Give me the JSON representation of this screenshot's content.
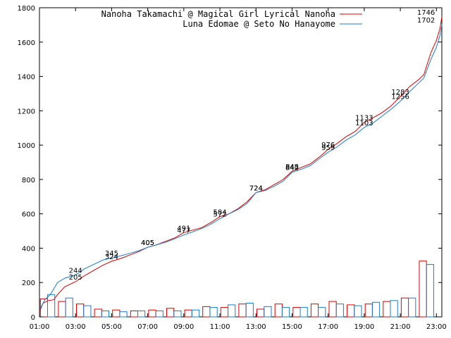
{
  "chart_data": {
    "type": "line",
    "title": "",
    "xlabel": "",
    "ylabel": "",
    "xlim": [
      1,
      23.3
    ],
    "ylim": [
      0,
      1800
    ],
    "grid": false,
    "legend_position": "top-right",
    "x_ticks": [
      "01:00",
      "03:00",
      "05:00",
      "07:00",
      "09:00",
      "11:00",
      "13:00",
      "15:00",
      "17:00",
      "19:00",
      "21:00",
      "23:00"
    ],
    "x_tick_values": [
      1,
      3,
      5,
      7,
      9,
      11,
      13,
      15,
      17,
      19,
      21,
      23
    ],
    "y_ticks": [
      0,
      200,
      400,
      600,
      800,
      1000,
      1200,
      1400,
      1600,
      1800
    ],
    "series": [
      {
        "name": "Nanoha Takamachi @ Magical Girl Lyrical Nanoha",
        "color": "#dd0000",
        "cumulative": [
          [
            1,
            30
          ],
          [
            1.2,
            80
          ],
          [
            1.5,
            95
          ],
          [
            1.8,
            100
          ],
          [
            2,
            130
          ],
          [
            2.4,
            175
          ],
          [
            3,
            205
          ],
          [
            3.5,
            240
          ],
          [
            4,
            270
          ],
          [
            4.5,
            300
          ],
          [
            5,
            324
          ],
          [
            5.5,
            340
          ],
          [
            6,
            360
          ],
          [
            6.5,
            380
          ],
          [
            7,
            405
          ],
          [
            7.5,
            420
          ],
          [
            8,
            440
          ],
          [
            8.5,
            460
          ],
          [
            9,
            491
          ],
          [
            9.5,
            505
          ],
          [
            10,
            520
          ],
          [
            10.5,
            550
          ],
          [
            11,
            584
          ],
          [
            11.5,
            600
          ],
          [
            12,
            630
          ],
          [
            12.5,
            670
          ],
          [
            13,
            724
          ],
          [
            13.5,
            740
          ],
          [
            14,
            770
          ],
          [
            14.5,
            800
          ],
          [
            15,
            848
          ],
          [
            15.5,
            870
          ],
          [
            16,
            890
          ],
          [
            16.5,
            930
          ],
          [
            17,
            976
          ],
          [
            17.5,
            1010
          ],
          [
            18,
            1050
          ],
          [
            18.5,
            1080
          ],
          [
            19,
            1133
          ],
          [
            19.5,
            1160
          ],
          [
            20,
            1190
          ],
          [
            20.5,
            1230
          ],
          [
            21,
            1283
          ],
          [
            21.5,
            1340
          ],
          [
            22,
            1380
          ],
          [
            22.3,
            1410
          ],
          [
            22.7,
            1540
          ],
          [
            23,
            1610
          ],
          [
            23.2,
            1680
          ],
          [
            23.3,
            1746
          ]
        ],
        "hourly": [
          105,
          90,
          75,
          45,
          40,
          35,
          40,
          50,
          40,
          60,
          55,
          75,
          45,
          75,
          55,
          75,
          90,
          70,
          75,
          90,
          110,
          325
        ]
      },
      {
        "name": "Luna Edomae @ Seto No Hanayome",
        "color": "#1a7ccc",
        "cumulative": [
          [
            1,
            40
          ],
          [
            1.3,
            100
          ],
          [
            1.6,
            130
          ],
          [
            2,
            200
          ],
          [
            2.4,
            225
          ],
          [
            3,
            244
          ],
          [
            3.5,
            280
          ],
          [
            4,
            305
          ],
          [
            4.5,
            330
          ],
          [
            5,
            345
          ],
          [
            5.5,
            355
          ],
          [
            6,
            370
          ],
          [
            6.5,
            385
          ],
          [
            7,
            405
          ],
          [
            7.5,
            420
          ],
          [
            8,
            435
          ],
          [
            8.5,
            455
          ],
          [
            9,
            477
          ],
          [
            9.5,
            495
          ],
          [
            10,
            515
          ],
          [
            10.5,
            540
          ],
          [
            11,
            572
          ],
          [
            11.5,
            600
          ],
          [
            12,
            625
          ],
          [
            12.5,
            660
          ],
          [
            13,
            724
          ],
          [
            13.5,
            735
          ],
          [
            14,
            760
          ],
          [
            14.5,
            790
          ],
          [
            15,
            842
          ],
          [
            15.5,
            860
          ],
          [
            16,
            880
          ],
          [
            16.5,
            920
          ],
          [
            17,
            959
          ],
          [
            17.5,
            990
          ],
          [
            18,
            1030
          ],
          [
            18.5,
            1060
          ],
          [
            19,
            1103
          ],
          [
            19.5,
            1130
          ],
          [
            20,
            1170
          ],
          [
            20.5,
            1210
          ],
          [
            21,
            1256
          ],
          [
            21.5,
            1310
          ],
          [
            22,
            1360
          ],
          [
            22.3,
            1390
          ],
          [
            22.7,
            1500
          ],
          [
            23,
            1570
          ],
          [
            23.2,
            1640
          ],
          [
            23.3,
            1702
          ]
        ],
        "hourly": [
          130,
          110,
          65,
          35,
          30,
          35,
          35,
          35,
          40,
          55,
          70,
          80,
          60,
          55,
          55,
          55,
          75,
          65,
          85,
          95,
          110,
          305
        ]
      }
    ],
    "annotations": [
      {
        "series": 1,
        "x": 3,
        "y": 244,
        "text": "244"
      },
      {
        "series": 0,
        "x": 3,
        "y": 205,
        "text": "205"
      },
      {
        "series": 1,
        "x": 5,
        "y": 345,
        "text": "345"
      },
      {
        "series": 0,
        "x": 5,
        "y": 324,
        "text": "324"
      },
      {
        "series": 0,
        "x": 7,
        "y": 405,
        "text": "405"
      },
      {
        "series": 1,
        "x": 7,
        "y": 405,
        "text": "405"
      },
      {
        "series": 0,
        "x": 9,
        "y": 491,
        "text": "491"
      },
      {
        "series": 1,
        "x": 9,
        "y": 477,
        "text": "477"
      },
      {
        "series": 0,
        "x": 11,
        "y": 584,
        "text": "584"
      },
      {
        "series": 1,
        "x": 11,
        "y": 572,
        "text": "572"
      },
      {
        "series": 0,
        "x": 13,
        "y": 724,
        "text": "724"
      },
      {
        "series": 1,
        "x": 13,
        "y": 724,
        "text": "724"
      },
      {
        "series": 0,
        "x": 15,
        "y": 848,
        "text": "848"
      },
      {
        "series": 1,
        "x": 15,
        "y": 842,
        "text": "842"
      },
      {
        "series": 0,
        "x": 17,
        "y": 976,
        "text": "976"
      },
      {
        "series": 1,
        "x": 17,
        "y": 959,
        "text": "959"
      },
      {
        "series": 0,
        "x": 19,
        "y": 1133,
        "text": "1133"
      },
      {
        "series": 1,
        "x": 19,
        "y": 1103,
        "text": "1103"
      },
      {
        "series": 0,
        "x": 21,
        "y": 1283,
        "text": "1283"
      },
      {
        "series": 1,
        "x": 21,
        "y": 1256,
        "text": "1256"
      },
      {
        "series": 0,
        "x": 23,
        "y": 1746,
        "text": "1746"
      },
      {
        "series": 1,
        "x": 23,
        "y": 1702,
        "text": "1702"
      }
    ]
  }
}
